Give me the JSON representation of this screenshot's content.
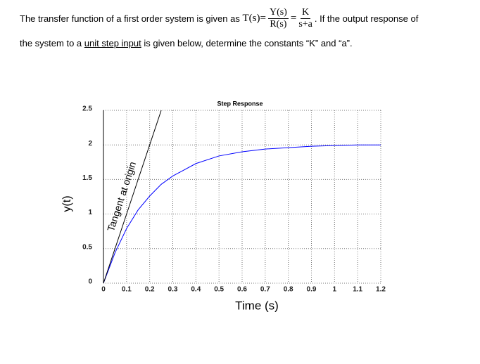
{
  "question": {
    "line1_start": "The transfer function of a first order system is given as",
    "formula": {
      "lhs": "T(s)",
      "equals": "=",
      "num1": "Y(s)",
      "den1": "R(s)",
      "num2": "K",
      "den2": "s+a"
    },
    "line1_end": ". If the output response of",
    "line2_start": "the system to a",
    "line2_link": "unit step input",
    "line2_end": "is given below, determine the constants “K” and “a”."
  },
  "chart_data": {
    "type": "line",
    "title": "Step Response",
    "x_label": "Time (s)",
    "y_label": "y(t)",
    "annotation": "Tangent at origin",
    "x": [
      0,
      0.05,
      0.1,
      0.15,
      0.2,
      0.25,
      0.3,
      0.4,
      0.5,
      0.6,
      0.7,
      0.8,
      0.9,
      1,
      1.1,
      1.2
    ],
    "series": [
      {
        "color": "#0000ff",
        "values": [
          0,
          0.44,
          0.79,
          1.06,
          1.26,
          1.43,
          1.55,
          1.73,
          1.84,
          1.9,
          1.94,
          1.96,
          1.98,
          1.99,
          2,
          2
        ]
      },
      {
        "color": "#000000",
        "values": [
          0,
          0.5,
          1,
          1.5,
          2,
          2.5,
          null,
          null,
          null,
          null,
          null,
          null,
          null,
          null,
          null,
          null
        ]
      }
    ],
    "xlim": [
      0,
      1.2
    ],
    "ylim": [
      0,
      2.5
    ],
    "xticks": [
      0,
      0.1,
      0.2,
      0.3,
      0.4,
      0.5,
      0.6,
      0.7,
      0.8,
      0.9,
      1,
      1.1,
      1.2
    ],
    "yticks": [
      0,
      0.5,
      1,
      1.5,
      2,
      2.5
    ],
    "grid": true
  }
}
